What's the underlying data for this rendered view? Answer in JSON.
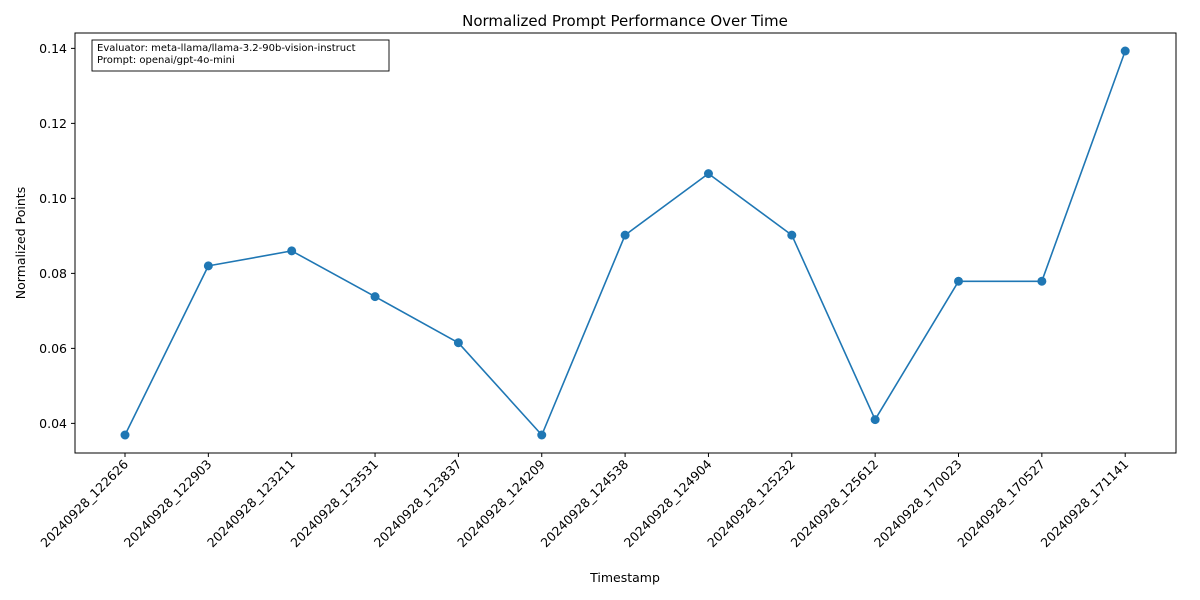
{
  "chart_data": {
    "type": "line",
    "title": "Normalized Prompt Performance Over Time",
    "xlabel": "Timestamp",
    "ylabel": "Normalized Points",
    "categories": [
      "20240928_122626",
      "20240928_122903",
      "20240928_123211",
      "20240928_123531",
      "20240928_123837",
      "20240928_124209",
      "20240928_124538",
      "20240928_124904",
      "20240928_125232",
      "20240928_125612",
      "20240928_170023",
      "20240928_170527",
      "20240928_171141"
    ],
    "values": [
      0.0369,
      0.082,
      0.086,
      0.0738,
      0.0615,
      0.0369,
      0.0902,
      0.1066,
      0.0902,
      0.041,
      0.0779,
      0.0779,
      0.1393
    ],
    "ylim": [
      0.0321,
      0.1441
    ],
    "yticks": [
      "0.04",
      "0.06",
      "0.08",
      "0.10",
      "0.12",
      "0.14"
    ],
    "grid": false,
    "color": "#1f77b4",
    "annotation": {
      "line1": "Evaluator: meta-llama/llama-3.2-90b-vision-instruct",
      "line2": "Prompt: openai/gpt-4o-mini"
    }
  }
}
